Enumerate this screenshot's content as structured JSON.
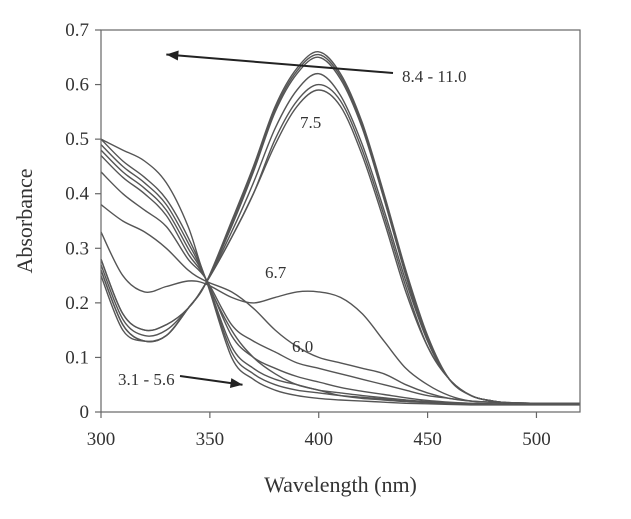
{
  "chart_data": {
    "type": "line",
    "title": "",
    "xlabel": "Wavelength (nm)",
    "ylabel": "Absorbance",
    "xlim": [
      300,
      520
    ],
    "ylim": [
      0,
      0.7
    ],
    "xticks": [
      "300",
      "350",
      "400",
      "450",
      "500"
    ],
    "yticks": [
      "0",
      "0.1",
      "0.2",
      "0.3",
      "0.4",
      "0.5",
      "0.6",
      "0.7"
    ],
    "grid": false,
    "legend": "none",
    "line_color": "#555555",
    "annotations": [
      {
        "text": "8.4 - 11.0",
        "arrow_to": [
          330,
          0.655
        ]
      },
      {
        "text": "7.5"
      },
      {
        "text": "6.7"
      },
      {
        "text": "6.0"
      },
      {
        "text": "3.1 - 5.6",
        "arrow_to": [
          365,
          0.05
        ]
      }
    ],
    "x": [
      300,
      310,
      320,
      330,
      340,
      348,
      360,
      370,
      380,
      390,
      400,
      410,
      420,
      430,
      440,
      450,
      460,
      470,
      480,
      490,
      500,
      510,
      520
    ],
    "series": [
      {
        "values": [
          0.5,
          0.46,
          0.43,
          0.39,
          0.32,
          0.245,
          0.1,
          0.06,
          0.04,
          0.03,
          0.025,
          0.022,
          0.02,
          0.018,
          0.016,
          0.015,
          0.014,
          0.013,
          0.013,
          0.013,
          0.013,
          0.013,
          0.013
        ]
      },
      {
        "values": [
          0.49,
          0.45,
          0.42,
          0.38,
          0.31,
          0.245,
          0.11,
          0.07,
          0.05,
          0.04,
          0.035,
          0.03,
          0.027,
          0.024,
          0.02,
          0.018,
          0.016,
          0.015,
          0.014,
          0.014,
          0.014,
          0.014,
          0.014
        ]
      },
      {
        "values": [
          0.48,
          0.44,
          0.41,
          0.37,
          0.3,
          0.245,
          0.12,
          0.08,
          0.06,
          0.05,
          0.04,
          0.035,
          0.03,
          0.026,
          0.022,
          0.019,
          0.017,
          0.016,
          0.015,
          0.015,
          0.015,
          0.015,
          0.015
        ]
      },
      {
        "values": [
          0.47,
          0.43,
          0.4,
          0.36,
          0.29,
          0.245,
          0.14,
          0.1,
          0.08,
          0.065,
          0.055,
          0.045,
          0.038,
          0.032,
          0.026,
          0.021,
          0.018,
          0.016,
          0.015,
          0.015,
          0.015,
          0.015,
          0.015
        ]
      },
      {
        "values": [
          0.5,
          0.48,
          0.46,
          0.42,
          0.34,
          0.245,
          0.15,
          0.1,
          0.07,
          0.05,
          0.04,
          0.03,
          0.025,
          0.022,
          0.019,
          0.017,
          0.015,
          0.014,
          0.014,
          0.014,
          0.014,
          0.014,
          0.014
        ]
      },
      {
        "values": [
          0.44,
          0.4,
          0.37,
          0.34,
          0.28,
          0.245,
          0.16,
          0.13,
          0.11,
          0.09,
          0.08,
          0.07,
          0.06,
          0.05,
          0.04,
          0.03,
          0.025,
          0.02,
          0.018,
          0.017,
          0.016,
          0.016,
          0.016
        ]
      },
      {
        "values": [
          0.38,
          0.35,
          0.33,
          0.3,
          0.26,
          0.24,
          0.22,
          0.19,
          0.15,
          0.12,
          0.1,
          0.09,
          0.08,
          0.07,
          0.05,
          0.035,
          0.025,
          0.02,
          0.018,
          0.017,
          0.016,
          0.016,
          0.016
        ]
      },
      {
        "values": [
          0.33,
          0.25,
          0.22,
          0.23,
          0.24,
          0.235,
          0.21,
          0.2,
          0.21,
          0.22,
          0.22,
          0.21,
          0.18,
          0.13,
          0.08,
          0.05,
          0.03,
          0.02,
          0.018,
          0.017,
          0.016,
          0.016,
          0.016
        ]
      },
      {
        "values": [
          0.28,
          0.18,
          0.15,
          0.16,
          0.19,
          0.235,
          0.32,
          0.4,
          0.49,
          0.56,
          0.59,
          0.56,
          0.47,
          0.35,
          0.22,
          0.12,
          0.06,
          0.03,
          0.02,
          0.016,
          0.015,
          0.015,
          0.015
        ]
      },
      {
        "values": [
          0.28,
          0.18,
          0.15,
          0.16,
          0.19,
          0.235,
          0.32,
          0.4,
          0.5,
          0.57,
          0.6,
          0.57,
          0.48,
          0.36,
          0.23,
          0.12,
          0.06,
          0.03,
          0.02,
          0.016,
          0.015,
          0.015,
          0.015
        ]
      },
      {
        "values": [
          0.27,
          0.17,
          0.14,
          0.15,
          0.19,
          0.235,
          0.33,
          0.42,
          0.52,
          0.59,
          0.62,
          0.58,
          0.49,
          0.37,
          0.24,
          0.13,
          0.06,
          0.03,
          0.02,
          0.016,
          0.015,
          0.015,
          0.015
        ]
      },
      {
        "values": [
          0.26,
          0.16,
          0.13,
          0.14,
          0.19,
          0.235,
          0.34,
          0.44,
          0.55,
          0.62,
          0.65,
          0.61,
          0.52,
          0.39,
          0.25,
          0.13,
          0.06,
          0.03,
          0.02,
          0.016,
          0.015,
          0.015,
          0.015
        ]
      },
      {
        "values": [
          0.26,
          0.16,
          0.13,
          0.14,
          0.19,
          0.235,
          0.345,
          0.445,
          0.555,
          0.625,
          0.655,
          0.615,
          0.525,
          0.395,
          0.255,
          0.135,
          0.06,
          0.03,
          0.02,
          0.016,
          0.015,
          0.015,
          0.015
        ]
      },
      {
        "values": [
          0.25,
          0.15,
          0.13,
          0.14,
          0.19,
          0.235,
          0.35,
          0.45,
          0.56,
          0.63,
          0.66,
          0.62,
          0.53,
          0.4,
          0.26,
          0.14,
          0.06,
          0.03,
          0.02,
          0.016,
          0.015,
          0.015,
          0.015
        ]
      }
    ]
  }
}
